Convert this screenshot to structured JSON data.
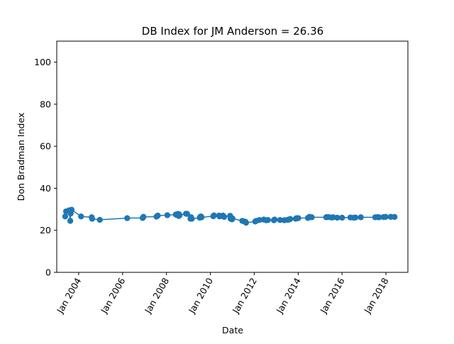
{
  "chart_data": {
    "type": "line",
    "title": "DB Index for JM Anderson = 26.36",
    "xlabel": "Date",
    "ylabel": "Don Bradman Index",
    "ylim": [
      0,
      110
    ],
    "yticks": [
      0,
      20,
      40,
      60,
      80,
      100
    ],
    "xlim": [
      "2003-01-01",
      "2019-01-01"
    ],
    "xticks": [
      {
        "date": "2004-01-01",
        "label": "Jan 2004"
      },
      {
        "date": "2006-01-01",
        "label": "Jan 2006"
      },
      {
        "date": "2008-01-01",
        "label": "Jan 2008"
      },
      {
        "date": "2010-01-01",
        "label": "Jan 2010"
      },
      {
        "date": "2012-01-01",
        "label": "Jan 2012"
      },
      {
        "date": "2014-01-01",
        "label": "Jan 2014"
      },
      {
        "date": "2016-01-01",
        "label": "Jan 2016"
      },
      {
        "date": "2018-01-01",
        "label": "Jan 2018"
      }
    ],
    "grid": false,
    "legend": "none",
    "color": "#1f77b4",
    "series": [
      {
        "x": [
          "2003-05-22",
          "2003-06-05",
          "2003-07-24",
          "2003-08-14",
          "2003-08-21",
          "2003-09-04",
          "2004-02-10",
          "2004-08-05",
          "2004-08-12",
          "2004-12-17",
          "2006-03-18",
          "2006-12-01",
          "2006-12-14",
          "2007-07-19",
          "2007-08-09",
          "2008-01-15",
          "2008-06-05",
          "2008-06-19",
          "2008-07-10",
          "2008-07-24",
          "2008-07-31",
          "2008-08-07",
          "2008-11-20",
          "2008-12-11",
          "2009-02-04",
          "2009-02-15",
          "2009-02-26",
          "2009-07-08",
          "2009-07-16",
          "2009-07-30",
          "2009-08-07",
          "2010-02-18",
          "2010-03-01",
          "2010-05-27",
          "2010-06-03",
          "2010-07-29",
          "2010-08-18",
          "2010-11-25",
          "2010-12-03",
          "2010-12-16",
          "2010-12-26",
          "2011-01-03",
          "2011-06-16",
          "2011-07-21",
          "2011-08-10",
          "2011-08-18",
          "2012-01-17",
          "2012-02-03",
          "2012-03-26",
          "2012-06-07",
          "2012-07-19",
          "2012-08-16",
          "2012-11-23",
          "2012-12-05",
          "2013-03-06",
          "2013-05-16",
          "2013-07-10",
          "2013-08-01",
          "2013-08-21",
          "2013-11-21",
          "2013-12-05",
          "2014-01-03",
          "2014-06-12",
          "2014-07-09",
          "2014-08-15",
          "2015-04-13",
          "2015-04-21",
          "2015-05-21",
          "2015-07-08",
          "2015-08-06",
          "2015-10-13",
          "2016-01-02",
          "2016-05-19",
          "2016-07-14",
          "2016-08-11",
          "2016-11-09",
          "2017-07-06",
          "2017-08-17",
          "2017-09-07",
          "2017-11-23",
          "2017-12-26",
          "2018-03-22",
          "2018-05-24"
        ],
        "y": [
          26.6,
          29.0,
          29.5,
          24.5,
          28.0,
          29.8,
          26.6,
          26.2,
          25.5,
          25.0,
          25.8,
          25.9,
          26.4,
          26.5,
          27.0,
          27.2,
          27.5,
          27.3,
          27.8,
          26.8,
          27.6,
          27.2,
          27.9,
          27.8,
          25.5,
          26.2,
          25.5,
          26.0,
          26.4,
          26.6,
          26.2,
          26.7,
          27.1,
          27.0,
          26.6,
          27.0,
          26.4,
          26.9,
          25.5,
          26.0,
          25.2,
          25.6,
          24.5,
          24.2,
          24.0,
          23.6,
          24.2,
          24.5,
          24.9,
          25.1,
          24.8,
          24.9,
          24.8,
          25.1,
          24.9,
          24.8,
          25.0,
          25.1,
          25.4,
          25.5,
          25.8,
          25.8,
          25.9,
          26.4,
          26.2,
          26.2,
          26.3,
          26.3,
          26.1,
          26.2,
          26.0,
          26.0,
          26.1,
          26.0,
          26.1,
          26.2,
          26.2,
          26.3,
          26.2,
          26.3,
          26.4,
          26.4,
          26.36
        ]
      }
    ]
  }
}
